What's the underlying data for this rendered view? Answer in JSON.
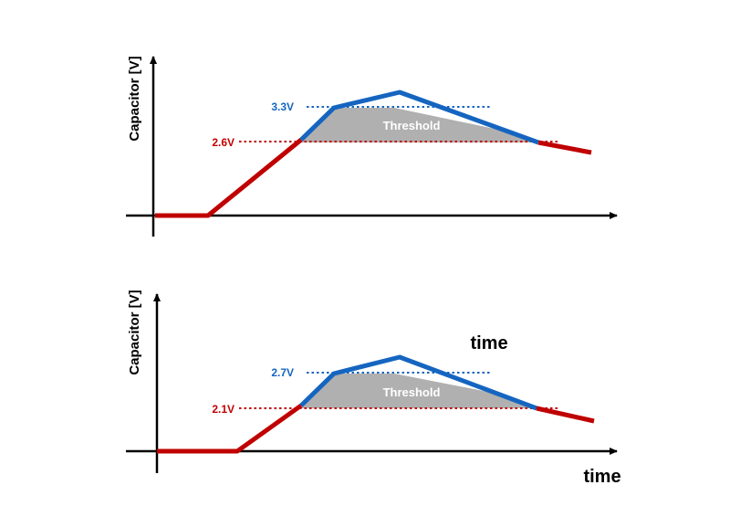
{
  "colors": {
    "high": "#1565c0",
    "low": "#c00000",
    "threshold_fill": "#b0b0b0",
    "axis": "#000000"
  },
  "top": {
    "ylabel": "Capacitor [V]",
    "high_label": "3.3V",
    "low_label": "2.6V",
    "threshold_label": "Threshold"
  },
  "bottom": {
    "ylabel": "Capacitor [V]",
    "high_label": "2.7V",
    "low_label": "2.1V",
    "threshold_label": "Threshold",
    "floating_label": "time",
    "xlabel": "time"
  }
}
